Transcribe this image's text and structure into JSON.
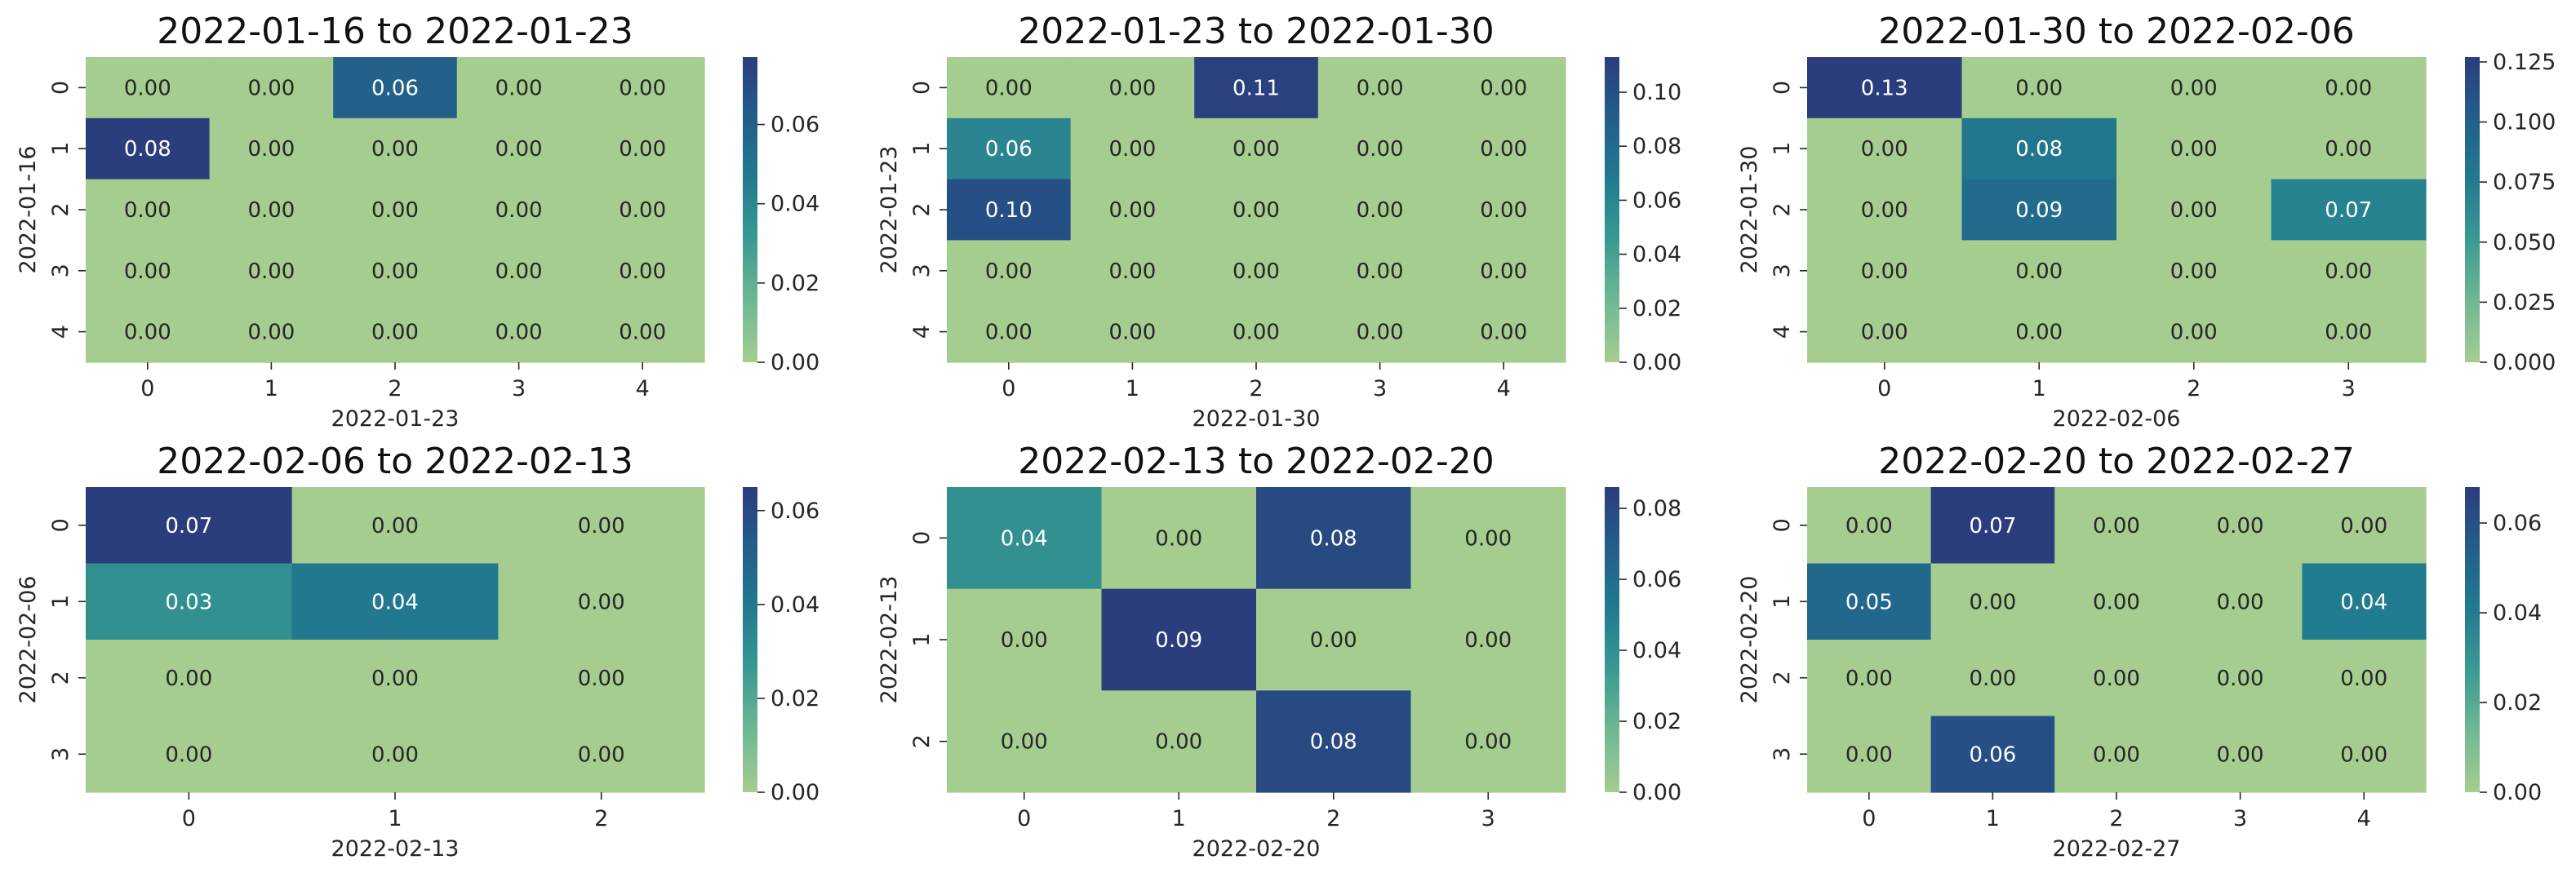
{
  "chart_data": [
    {
      "type": "heatmap",
      "title": "2022-01-16 to 2022-01-23",
      "xlabel": "2022-01-23",
      "ylabel": "2022-01-16",
      "x_categories": [
        "0",
        "1",
        "2",
        "3",
        "4"
      ],
      "y_categories": [
        "0",
        "1",
        "2",
        "3",
        "4"
      ],
      "values": [
        [
          0.0,
          0.0,
          0.06,
          0.0,
          0.0
        ],
        [
          0.08,
          0.0,
          0.0,
          0.0,
          0.0
        ],
        [
          0.0,
          0.0,
          0.0,
          0.0,
          0.0
        ],
        [
          0.0,
          0.0,
          0.0,
          0.0,
          0.0
        ],
        [
          0.0,
          0.0,
          0.0,
          0.0,
          0.0
        ]
      ],
      "colorbar": {
        "min": 0,
        "max": 0.077,
        "ticks": [
          "0.00",
          "0.02",
          "0.04",
          "0.06"
        ]
      }
    },
    {
      "type": "heatmap",
      "title": "2022-01-23 to 2022-01-30",
      "xlabel": "2022-01-30",
      "ylabel": "2022-01-23",
      "x_categories": [
        "0",
        "1",
        "2",
        "3",
        "4"
      ],
      "y_categories": [
        "0",
        "1",
        "2",
        "3",
        "4"
      ],
      "values": [
        [
          0.0,
          0.0,
          0.11,
          0.0,
          0.0
        ],
        [
          0.06,
          0.0,
          0.0,
          0.0,
          0.0
        ],
        [
          0.1,
          0.0,
          0.0,
          0.0,
          0.0
        ],
        [
          0.0,
          0.0,
          0.0,
          0.0,
          0.0
        ],
        [
          0.0,
          0.0,
          0.0,
          0.0,
          0.0
        ]
      ],
      "colorbar": {
        "min": 0,
        "max": 0.113,
        "ticks": [
          "0.00",
          "0.02",
          "0.04",
          "0.06",
          "0.08",
          "0.10"
        ]
      }
    },
    {
      "type": "heatmap",
      "title": "2022-01-30 to 2022-02-06",
      "xlabel": "2022-02-06",
      "ylabel": "2022-01-30",
      "x_categories": [
        "0",
        "1",
        "2",
        "3"
      ],
      "y_categories": [
        "0",
        "1",
        "2",
        "3",
        "4"
      ],
      "values": [
        [
          0.13,
          0.0,
          0.0,
          0.0
        ],
        [
          0.0,
          0.08,
          0.0,
          0.0
        ],
        [
          0.0,
          0.09,
          0.0,
          0.07
        ],
        [
          0.0,
          0.0,
          0.0,
          0.0
        ],
        [
          0.0,
          0.0,
          0.0,
          0.0
        ]
      ],
      "colorbar": {
        "min": 0,
        "max": 0.127,
        "ticks": [
          "0.000",
          "0.025",
          "0.050",
          "0.075",
          "0.100",
          "0.125"
        ]
      }
    },
    {
      "type": "heatmap",
      "title": "2022-02-06 to 2022-02-13",
      "xlabel": "2022-02-13",
      "ylabel": "2022-02-06",
      "x_categories": [
        "0",
        "1",
        "2"
      ],
      "y_categories": [
        "0",
        "1",
        "2",
        "3"
      ],
      "values": [
        [
          0.07,
          0.0,
          0.0
        ],
        [
          0.03,
          0.04,
          0.0
        ],
        [
          0.0,
          0.0,
          0.0
        ],
        [
          0.0,
          0.0,
          0.0
        ]
      ],
      "colorbar": {
        "min": 0,
        "max": 0.065,
        "ticks": [
          "0.00",
          "0.02",
          "0.04",
          "0.06"
        ]
      }
    },
    {
      "type": "heatmap",
      "title": "2022-02-13 to 2022-02-20",
      "xlabel": "2022-02-20",
      "ylabel": "2022-02-13",
      "x_categories": [
        "0",
        "1",
        "2",
        "3"
      ],
      "y_categories": [
        "0",
        "1",
        "2"
      ],
      "values": [
        [
          0.04,
          0.0,
          0.08,
          0.0
        ],
        [
          0.0,
          0.09,
          0.0,
          0.0
        ],
        [
          0.0,
          0.0,
          0.08,
          0.0
        ]
      ],
      "colorbar": {
        "min": 0,
        "max": 0.086,
        "ticks": [
          "0.00",
          "0.02",
          "0.04",
          "0.06",
          "0.08"
        ]
      }
    },
    {
      "type": "heatmap",
      "title": "2022-02-20 to 2022-02-27",
      "xlabel": "2022-02-27",
      "ylabel": "2022-02-20",
      "x_categories": [
        "0",
        "1",
        "2",
        "3",
        "4"
      ],
      "y_categories": [
        "0",
        "1",
        "2",
        "3"
      ],
      "values": [
        [
          0.0,
          0.07,
          0.0,
          0.0,
          0.0
        ],
        [
          0.05,
          0.0,
          0.0,
          0.0,
          0.04
        ],
        [
          0.0,
          0.0,
          0.0,
          0.0,
          0.0
        ],
        [
          0.0,
          0.06,
          0.0,
          0.0,
          0.0
        ]
      ],
      "colorbar": {
        "min": 0,
        "max": 0.068,
        "ticks": [
          "0.00",
          "0.02",
          "0.04",
          "0.06"
        ]
      }
    }
  ],
  "colormap": {
    "name": "crest",
    "stops": [
      "#a5cd90",
      "#6fb893",
      "#3a9a92",
      "#217a8f",
      "#235e8b",
      "#2b3d7d"
    ]
  }
}
